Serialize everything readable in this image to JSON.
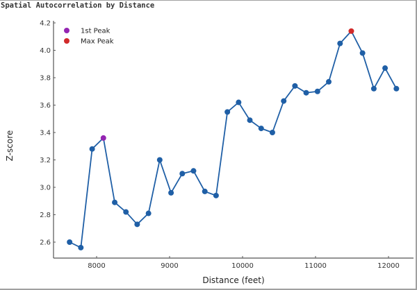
{
  "title": "Spatial Autocorrelation by Distance",
  "colors": {
    "series": "#1f5fa6",
    "first_peak": "#9425b2",
    "max_peak": "#d12a2a",
    "axis": "#555555",
    "frame": "#a0a0a0"
  },
  "legend": {
    "items": [
      {
        "label": "1st Peak",
        "color": "#9425b2"
      },
      {
        "label": "Max Peak",
        "color": "#d12a2a"
      }
    ]
  },
  "chart_data": {
    "type": "line",
    "title": "Spatial Autocorrelation by Distance",
    "xlabel": "Distance (feet)",
    "ylabel": "Z-score",
    "xlim": [
      7400,
      12350
    ],
    "ylim": [
      2.48,
      4.21
    ],
    "x_ticks": [
      8000,
      9000,
      10000,
      11000,
      12000
    ],
    "y_ticks": [
      2.6,
      2.8,
      3.0,
      3.2,
      3.4,
      3.6,
      3.8,
      4.0,
      4.2
    ],
    "grid": false,
    "legend_position": "upper left",
    "series": [
      {
        "name": "Z-score",
        "x": [
          7630,
          7784,
          7939,
          8093,
          8248,
          8402,
          8556,
          8711,
          8865,
          9020,
          9174,
          9328,
          9483,
          9637,
          9792,
          9946,
          10100,
          10255,
          10409,
          10564,
          10718,
          10872,
          11027,
          11181,
          11336,
          11490,
          11644,
          11799,
          11953,
          12108
        ],
        "values": [
          2.6,
          2.56,
          3.28,
          3.36,
          2.89,
          2.82,
          2.73,
          2.81,
          3.2,
          2.96,
          3.1,
          3.12,
          2.97,
          2.94,
          3.55,
          3.62,
          3.49,
          3.43,
          3.4,
          3.63,
          3.74,
          3.69,
          3.7,
          3.77,
          4.05,
          4.14,
          3.98,
          3.72,
          3.87,
          3.72
        ]
      }
    ],
    "highlights": [
      {
        "name": "1st Peak",
        "x": 8093,
        "value": 3.36
      },
      {
        "name": "Max Peak",
        "x": 11490,
        "value": 4.14
      }
    ]
  }
}
